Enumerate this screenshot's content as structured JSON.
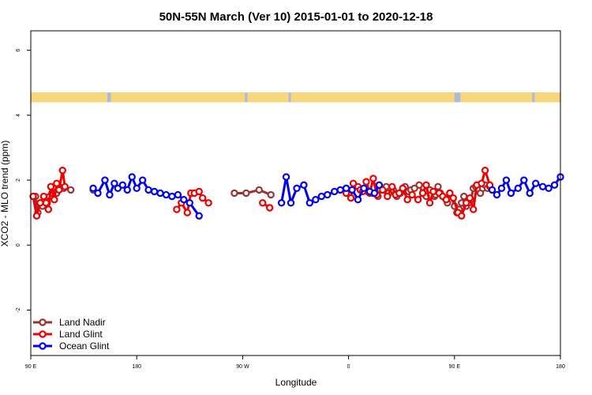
{
  "chart_data": {
    "type": "line",
    "title": "50N-55N March (Ver 10)   2015-01-01 to 2020-12-18",
    "xlabel": "Longitude",
    "ylabel": "XCO2 - MLO trend (ppm)",
    "xlim": [
      90,
      540
    ],
    "ylim": [
      -3.4,
      6.6
    ],
    "x_ticks": [
      {
        "value": 90,
        "label": "90 E"
      },
      {
        "value": 180,
        "label": "180"
      },
      {
        "value": 270,
        "label": "90 W"
      },
      {
        "value": 360,
        "label": "0"
      },
      {
        "value": 450,
        "label": "90 E"
      },
      {
        "value": 540,
        "label": "180"
      }
    ],
    "y_ticks": [
      {
        "value": -2,
        "label": "-2"
      },
      {
        "value": 0,
        "label": "0"
      },
      {
        "value": 2,
        "label": "2"
      },
      {
        "value": 4,
        "label": "4"
      },
      {
        "value": 6,
        "label": "6"
      }
    ],
    "grid": false,
    "legend_position": "bottom-left",
    "land_ocean_band": {
      "y_range": [
        4.4,
        4.7
      ],
      "land_color": "#f8d67a",
      "ocean_color": "#a9bcdc",
      "land_segments": [
        [
          90,
          155
        ],
        [
          158,
          272
        ],
        [
          274,
          309
        ],
        [
          311,
          450
        ],
        [
          455,
          516
        ],
        [
          518,
          540
        ]
      ]
    },
    "series": [
      {
        "name": "Land Nadir",
        "color": "#993333",
        "x": [
          94,
          96,
          98,
          100,
          102,
          104,
          106,
          108,
          110,
          112,
          114,
          116,
          118,
          124,
          143,
          263,
          273,
          284,
          294,
          376,
          380,
          385,
          387,
          392,
          394,
          398,
          401,
          404,
          408,
          411,
          413,
          416,
          420,
          423,
          426,
          429,
          433,
          434,
          436,
          438,
          442,
          444,
          446,
          450,
          452,
          454,
          456,
          458,
          460,
          462,
          464,
          466,
          468,
          470,
          472,
          474,
          476,
          478,
          480
        ],
        "y": [
          1.5,
          1.0,
          1.3,
          1.2,
          1.4,
          1.3,
          1.5,
          1.6,
          1.8,
          1.6,
          1.8,
          1.75,
          1.75,
          1.7,
          1.7,
          1.6,
          1.6,
          1.7,
          1.55,
          1.65,
          1.6,
          1.5,
          1.7,
          1.8,
          1.6,
          1.7,
          1.5,
          1.6,
          1.8,
          1.65,
          1.7,
          1.75,
          1.85,
          1.6,
          1.5,
          1.7,
          1.5,
          1.55,
          1.8,
          1.6,
          1.45,
          1.3,
          1.6,
          1.2,
          1.0,
          1.1,
          1.3,
          1.5,
          1.2,
          1.3,
          1.4,
          1.75,
          1.8,
          1.7,
          1.6,
          1.75,
          1.85,
          1.75,
          1.8
        ]
      },
      {
        "name": "Land Glint",
        "color": "#ee0000",
        "x": [
          92,
          95,
          98,
          101,
          103,
          105,
          107,
          110,
          112,
          114,
          117,
          119,
          214,
          218,
          223,
          226,
          229,
          233,
          236,
          241,
          287,
          293,
          358,
          362,
          364,
          368,
          370,
          372,
          375,
          378,
          381,
          384,
          389,
          393,
          397,
          400,
          403,
          406,
          410,
          414,
          419,
          423,
          426,
          429,
          432,
          437,
          440,
          443,
          446,
          449,
          453,
          456,
          460,
          463,
          466,
          469,
          473,
          476,
          480
        ],
        "y": [
          1.5,
          0.9,
          1.3,
          1.5,
          1.3,
          1.1,
          1.8,
          1.4,
          1.9,
          1.7,
          2.3,
          1.8,
          1.1,
          1.3,
          1.0,
          1.6,
          1.6,
          1.65,
          1.45,
          1.3,
          1.3,
          1.15,
          1.6,
          1.45,
          1.9,
          1.8,
          1.7,
          1.65,
          1.95,
          1.6,
          2.05,
          1.55,
          1.7,
          1.5,
          1.8,
          1.55,
          1.6,
          1.75,
          1.4,
          1.55,
          1.4,
          1.6,
          1.85,
          1.3,
          1.65,
          1.6,
          1.5,
          1.4,
          1.6,
          1.45,
          1.0,
          0.9,
          1.3,
          1.45,
          1.1,
          1.85,
          1.9,
          2.3,
          1.85
        ]
      },
      {
        "name": "Ocean Glint",
        "color": "#0000ee",
        "x": [
          143,
          147,
          153,
          157,
          161,
          164,
          168,
          172,
          176,
          180,
          185,
          190,
          195,
          200,
          205,
          210,
          215,
          220,
          225,
          233,
          303,
          307,
          311,
          316,
          322,
          327,
          332,
          337,
          342,
          348,
          353,
          358,
          363,
          368,
          373,
          378,
          382,
          386,
          482,
          486,
          490,
          494,
          498,
          504,
          509,
          514,
          519,
          525,
          530,
          535,
          540
        ],
        "y": [
          1.75,
          1.6,
          2.0,
          1.55,
          1.9,
          1.75,
          1.85,
          1.7,
          2.1,
          1.75,
          2.0,
          1.7,
          1.65,
          1.6,
          1.55,
          1.5,
          1.55,
          1.4,
          1.3,
          0.9,
          1.3,
          2.1,
          1.3,
          1.75,
          1.85,
          1.3,
          1.4,
          1.5,
          1.55,
          1.65,
          1.7,
          1.75,
          1.7,
          1.4,
          1.75,
          1.65,
          1.6,
          1.85,
          1.7,
          1.55,
          1.75,
          2.0,
          1.6,
          1.75,
          2.0,
          1.6,
          1.9,
          1.8,
          1.75,
          1.85,
          2.1
        ]
      }
    ]
  }
}
